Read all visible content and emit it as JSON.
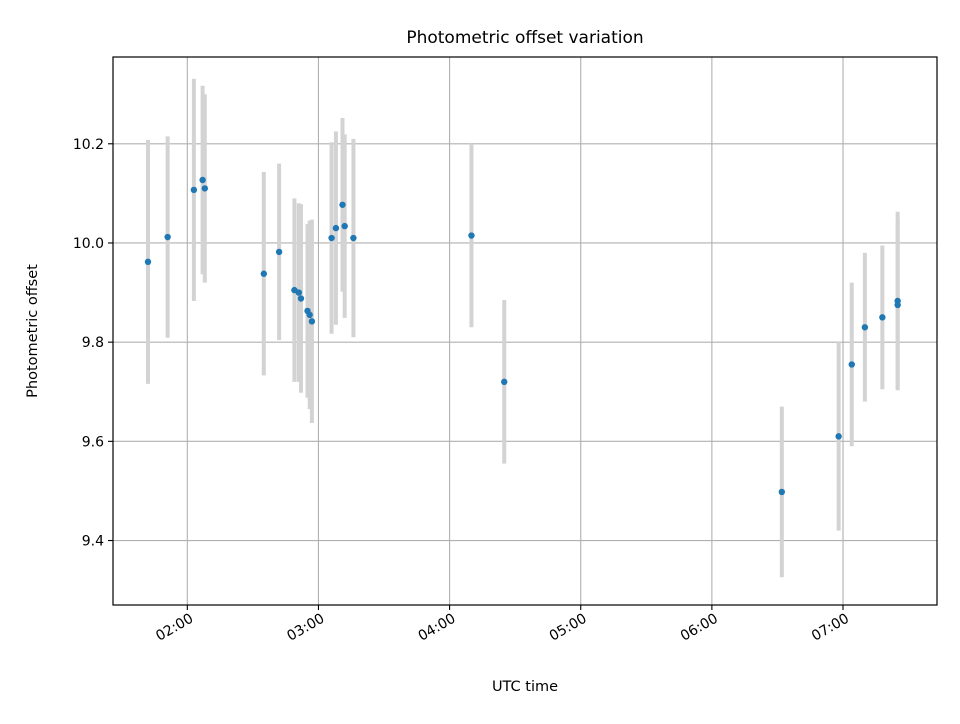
{
  "chart_data": {
    "type": "scatter",
    "title": "Photometric offset variation",
    "xlabel": "UTC time",
    "ylabel": "Photometric offset",
    "x_scale": "time",
    "xlim": [
      "01:26",
      "07:43"
    ],
    "ylim": [
      9.27,
      10.375
    ],
    "x_ticks": [
      "02:00",
      "03:00",
      "04:00",
      "05:00",
      "06:00",
      "07:00"
    ],
    "y_ticks": [
      9.4,
      9.6,
      9.8,
      10.0,
      10.2
    ],
    "y_tick_labels": [
      "9.4",
      "9.6",
      "9.8",
      "10.0",
      "10.2"
    ],
    "grid": true,
    "legend": "none",
    "colors": {
      "marker": "#1f77b4",
      "errorbar": "#d3d3d3",
      "grid": "#b0b0b0"
    },
    "series": [
      {
        "points": [
          {
            "x": "01:42",
            "y": 9.962,
            "yerr": 0.246
          },
          {
            "x": "01:51",
            "y": 10.012,
            "yerr": 0.203
          },
          {
            "x": "02:03",
            "y": 10.107,
            "yerr": 0.224
          },
          {
            "x": "02:07",
            "y": 10.127,
            "yerr": 0.19
          },
          {
            "x": "02:08",
            "y": 10.11,
            "yerr": 0.19
          },
          {
            "x": "02:35",
            "y": 9.938,
            "yerr": 0.205
          },
          {
            "x": "02:42",
            "y": 9.982,
            "yerr": 0.178
          },
          {
            "x": "02:49",
            "y": 9.905,
            "yerr": 0.185
          },
          {
            "x": "02:51",
            "y": 9.9,
            "yerr": 0.18
          },
          {
            "x": "02:52",
            "y": 9.888,
            "yerr": 0.19
          },
          {
            "x": "02:55",
            "y": 9.863,
            "yerr": 0.175
          },
          {
            "x": "02:56",
            "y": 9.855,
            "yerr": 0.19
          },
          {
            "x": "02:57",
            "y": 9.842,
            "yerr": 0.205
          },
          {
            "x": "03:06",
            "y": 10.01,
            "yerr": 0.193
          },
          {
            "x": "03:08",
            "y": 10.03,
            "yerr": 0.195
          },
          {
            "x": "03:11",
            "y": 10.077,
            "yerr": 0.175
          },
          {
            "x": "03:12",
            "y": 10.034,
            "yerr": 0.185
          },
          {
            "x": "03:16",
            "y": 10.01,
            "yerr": 0.2
          },
          {
            "x": "04:10",
            "y": 10.015,
            "yerr": 0.185
          },
          {
            "x": "04:25",
            "y": 9.72,
            "yerr": 0.165
          },
          {
            "x": "06:32",
            "y": 9.498,
            "yerr": 0.172
          },
          {
            "x": "06:58",
            "y": 9.61,
            "yerr": 0.19
          },
          {
            "x": "07:04",
            "y": 9.755,
            "yerr": 0.165
          },
          {
            "x": "07:10",
            "y": 9.83,
            "yerr": 0.15
          },
          {
            "x": "07:18",
            "y": 9.85,
            "yerr": 0.145
          },
          {
            "x": "07:25",
            "y": 9.883,
            "yerr": 0.18
          },
          {
            "x": "07:25",
            "y": 9.875,
            "yerr": 0.17
          }
        ]
      }
    ]
  }
}
